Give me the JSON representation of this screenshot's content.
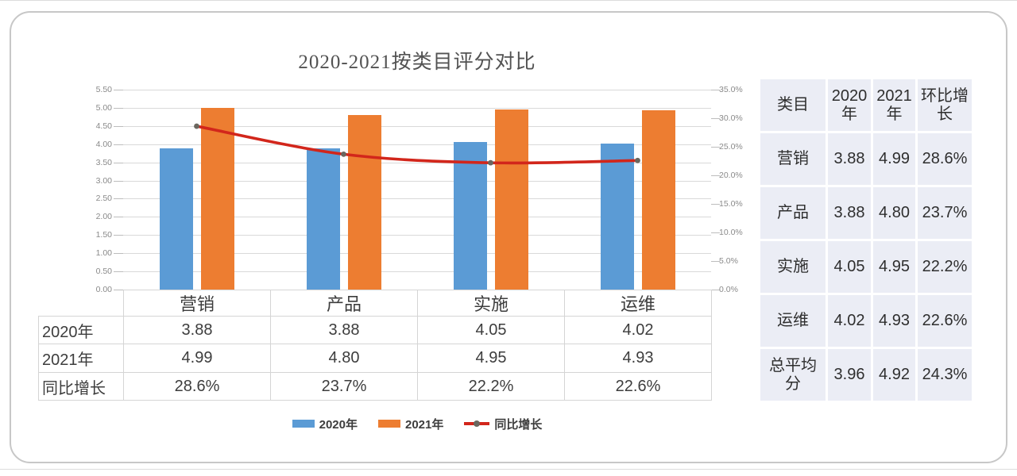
{
  "chart_data": {
    "type": "combo-bar-line",
    "title": "2020-2021按类目评分对比",
    "categories": [
      "营销",
      "产品",
      "实施",
      "运维"
    ],
    "series": [
      {
        "name": "2020年",
        "type": "bar",
        "axis": "left",
        "color": "#5B9BD5",
        "values": [
          3.88,
          3.88,
          4.05,
          4.02
        ]
      },
      {
        "name": "2021年",
        "type": "bar",
        "axis": "left",
        "color": "#ED7D31",
        "values": [
          4.99,
          4.8,
          4.95,
          4.93
        ]
      },
      {
        "name": "同比增长",
        "type": "line",
        "axis": "right",
        "color": "#D2261B",
        "marker_color": "#6A675F",
        "values": [
          28.6,
          23.7,
          22.2,
          22.6
        ],
        "labels": [
          "28.6%",
          "23.7%",
          "22.2%",
          "22.6%"
        ]
      }
    ],
    "left_axis": {
      "min": 0.0,
      "max": 5.5,
      "step": 0.5,
      "ticks": [
        "0.00",
        "0.50",
        "1.00",
        "1.50",
        "2.00",
        "2.50",
        "3.00",
        "3.50",
        "4.00",
        "4.50",
        "5.00",
        "5.50"
      ]
    },
    "right_axis": {
      "min": 0.0,
      "max": 35.0,
      "step": 5.0,
      "ticks": [
        "0.0%",
        "5.0%",
        "10.0%",
        "15.0%",
        "20.0%",
        "25.0%",
        "30.0%",
        "35.0%"
      ]
    },
    "grid": "horizontal",
    "legend_position": "bottom"
  },
  "bottom_table": {
    "columns": [
      "营销",
      "产品",
      "实施",
      "运维"
    ],
    "row_headers": [
      "2020年",
      "2021年",
      "同比增长"
    ],
    "rows": [
      [
        "3.88",
        "3.88",
        "4.05",
        "4.02"
      ],
      [
        "4.99",
        "4.80",
        "4.95",
        "4.93"
      ],
      [
        "28.6%",
        "23.7%",
        "22.2%",
        "22.6%"
      ]
    ]
  },
  "right_table": {
    "headers": [
      "类目",
      "2020年",
      "2021年",
      "环比增长"
    ],
    "rows": [
      [
        "营销",
        "3.88",
        "4.99",
        "28.6%"
      ],
      [
        "产品",
        "3.88",
        "4.80",
        "23.7%"
      ],
      [
        "实施",
        "4.05",
        "4.95",
        "22.2%"
      ],
      [
        "运维",
        "4.02",
        "4.93",
        "22.6%"
      ],
      [
        "总平均分",
        "3.96",
        "4.92",
        "24.3%"
      ]
    ]
  },
  "colors": {
    "bar_2020": "#5B9BD5",
    "bar_2021": "#ED7D31",
    "growth_line": "#D2261B",
    "line_marker": "#6A675F",
    "gridline": "#d9d9d9",
    "right_table_cell_bg": "#ebedf5",
    "card_border": "#c7c7c7"
  }
}
